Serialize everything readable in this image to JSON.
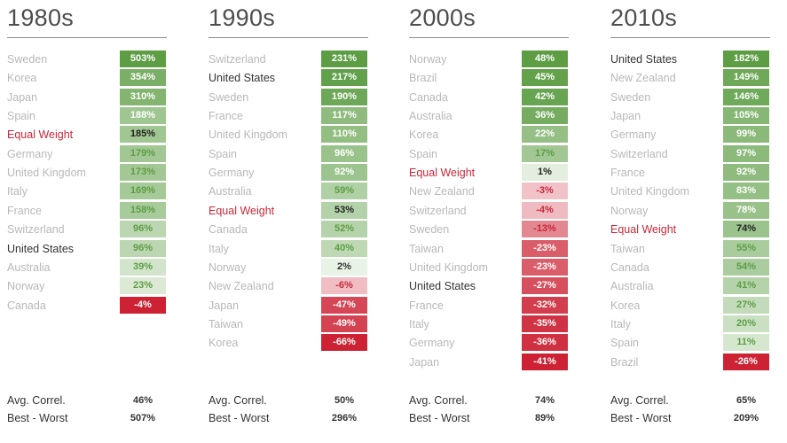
{
  "chart_data": {
    "type": "table",
    "title": "",
    "stats_labels": {
      "avg_correl": "Avg. Correl.",
      "best_worst": "Best - Worst"
    },
    "colors": {
      "strong_positive": "#5d9e45",
      "strong_negative": "#cc2233",
      "neutral": "#ffffff",
      "highlight_us": "#333333",
      "highlight_equal_weight": "#c8283a",
      "muted": "#b8b8b8"
    },
    "decades": [
      {
        "title": "1980s",
        "rows": [
          {
            "country": "Sweden",
            "value": 503,
            "label": "503%"
          },
          {
            "country": "Korea",
            "value": 354,
            "label": "354%"
          },
          {
            "country": "Japan",
            "value": 310,
            "label": "310%"
          },
          {
            "country": "Spain",
            "value": 188,
            "label": "188%"
          },
          {
            "country": "Equal Weight",
            "value": 185,
            "label": "185%"
          },
          {
            "country": "Germany",
            "value": 179,
            "label": "179%"
          },
          {
            "country": "United Kingdom",
            "value": 173,
            "label": "173%"
          },
          {
            "country": "Italy",
            "value": 169,
            "label": "169%"
          },
          {
            "country": "France",
            "value": 158,
            "label": "158%"
          },
          {
            "country": "Switzerland",
            "value": 96,
            "label": "96%"
          },
          {
            "country": "United States",
            "value": 96,
            "label": "96%"
          },
          {
            "country": "Australia",
            "value": 39,
            "label": "39%"
          },
          {
            "country": "Norway",
            "value": 23,
            "label": "23%"
          },
          {
            "country": "Canada",
            "value": -4,
            "label": "-4%"
          }
        ],
        "avg_correl": "46%",
        "best_worst": "507%"
      },
      {
        "title": "1990s",
        "rows": [
          {
            "country": "Switzerland",
            "value": 231,
            "label": "231%"
          },
          {
            "country": "United States",
            "value": 217,
            "label": "217%"
          },
          {
            "country": "Sweden",
            "value": 190,
            "label": "190%"
          },
          {
            "country": "France",
            "value": 117,
            "label": "117%"
          },
          {
            "country": "United Kingdom",
            "value": 110,
            "label": "110%"
          },
          {
            "country": "Spain",
            "value": 96,
            "label": "96%"
          },
          {
            "country": "Germany",
            "value": 92,
            "label": "92%"
          },
          {
            "country": "Australia",
            "value": 59,
            "label": "59%"
          },
          {
            "country": "Equal Weight",
            "value": 53,
            "label": "53%"
          },
          {
            "country": "Canada",
            "value": 52,
            "label": "52%"
          },
          {
            "country": "Italy",
            "value": 40,
            "label": "40%"
          },
          {
            "country": "Norway",
            "value": 2,
            "label": "2%"
          },
          {
            "country": "New Zealand",
            "value": -6,
            "label": "-6%"
          },
          {
            "country": "Japan",
            "value": -47,
            "label": "-47%"
          },
          {
            "country": "Taiwan",
            "value": -49,
            "label": "-49%"
          },
          {
            "country": "Korea",
            "value": -66,
            "label": "-66%"
          }
        ],
        "avg_correl": "50%",
        "best_worst": "296%"
      },
      {
        "title": "2000s",
        "rows": [
          {
            "country": "Norway",
            "value": 48,
            "label": "48%"
          },
          {
            "country": "Brazil",
            "value": 45,
            "label": "45%"
          },
          {
            "country": "Canada",
            "value": 42,
            "label": "42%"
          },
          {
            "country": "Australia",
            "value": 36,
            "label": "36%"
          },
          {
            "country": "Korea",
            "value": 22,
            "label": "22%"
          },
          {
            "country": "Spain",
            "value": 17,
            "label": "17%"
          },
          {
            "country": "Equal Weight",
            "value": 1,
            "label": "1%"
          },
          {
            "country": "New Zealand",
            "value": -3,
            "label": "-3%"
          },
          {
            "country": "Switzerland",
            "value": -4,
            "label": "-4%"
          },
          {
            "country": "Sweden",
            "value": -13,
            "label": "-13%"
          },
          {
            "country": "Taiwan",
            "value": -23,
            "label": "-23%"
          },
          {
            "country": "United Kingdom",
            "value": -23,
            "label": "-23%"
          },
          {
            "country": "United States",
            "value": -27,
            "label": "-27%"
          },
          {
            "country": "France",
            "value": -32,
            "label": "-32%"
          },
          {
            "country": "Italy",
            "value": -35,
            "label": "-35%"
          },
          {
            "country": "Germany",
            "value": -36,
            "label": "-36%"
          },
          {
            "country": "Japan",
            "value": -41,
            "label": "-41%"
          }
        ],
        "avg_correl": "74%",
        "best_worst": "89%"
      },
      {
        "title": "2010s",
        "rows": [
          {
            "country": "United States",
            "value": 182,
            "label": "182%"
          },
          {
            "country": "New Zealand",
            "value": 149,
            "label": "149%"
          },
          {
            "country": "Sweden",
            "value": 146,
            "label": "146%"
          },
          {
            "country": "Japan",
            "value": 105,
            "label": "105%"
          },
          {
            "country": "Germany",
            "value": 99,
            "label": "99%"
          },
          {
            "country": "Switzerland",
            "value": 97,
            "label": "97%"
          },
          {
            "country": "France",
            "value": 92,
            "label": "92%"
          },
          {
            "country": "United Kingdom",
            "value": 83,
            "label": "83%"
          },
          {
            "country": "Norway",
            "value": 78,
            "label": "78%"
          },
          {
            "country": "Equal Weight",
            "value": 74,
            "label": "74%"
          },
          {
            "country": "Taiwan",
            "value": 55,
            "label": "55%"
          },
          {
            "country": "Canada",
            "value": 54,
            "label": "54%"
          },
          {
            "country": "Australia",
            "value": 41,
            "label": "41%"
          },
          {
            "country": "Korea",
            "value": 27,
            "label": "27%"
          },
          {
            "country": "Italy",
            "value": 20,
            "label": "20%"
          },
          {
            "country": "Spain",
            "value": 11,
            "label": "11%"
          },
          {
            "country": "Brazil",
            "value": -26,
            "label": "-26%"
          }
        ],
        "avg_correl": "65%",
        "best_worst": "209%"
      }
    ]
  }
}
